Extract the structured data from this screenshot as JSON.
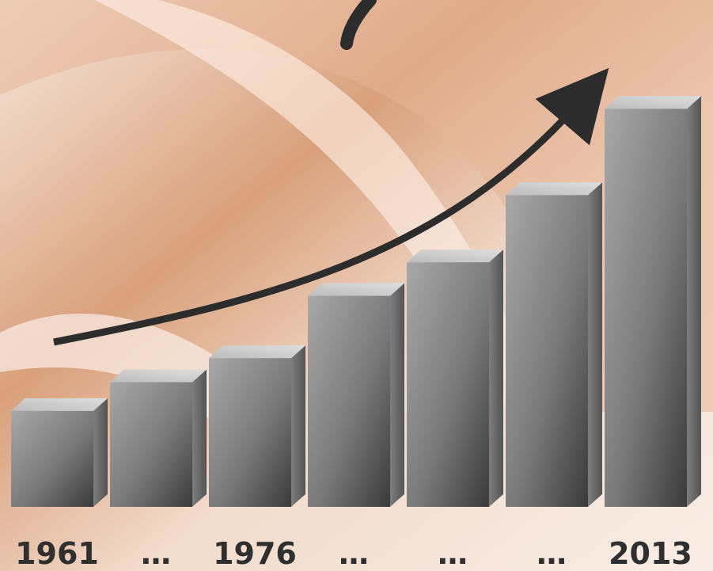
{
  "chart_data": {
    "type": "bar",
    "style": "3d-bars-with-trend-arrow",
    "categories": [
      "1961",
      "…",
      "1976",
      "…",
      "…",
      "…",
      "2013"
    ],
    "values": [
      1.0,
      1.3,
      1.55,
      2.2,
      2.55,
      3.25,
      4.15
    ],
    "ylim": [
      0,
      4.5
    ],
    "title": "",
    "xlabel": "",
    "ylabel": "",
    "grid": false,
    "legend": "none",
    "trend_arrow": true,
    "colors": {
      "bar_front_light": "#9a9a9a",
      "bar_front_dark": "#3c3c3c",
      "bar_top": "#cfcfcf",
      "bar_side": "#6b6b6b",
      "arrow": "#2c2c2c",
      "background_light": "#f6e7dc",
      "background_dark": "#c98a62",
      "label": "#2f2f2f"
    }
  }
}
